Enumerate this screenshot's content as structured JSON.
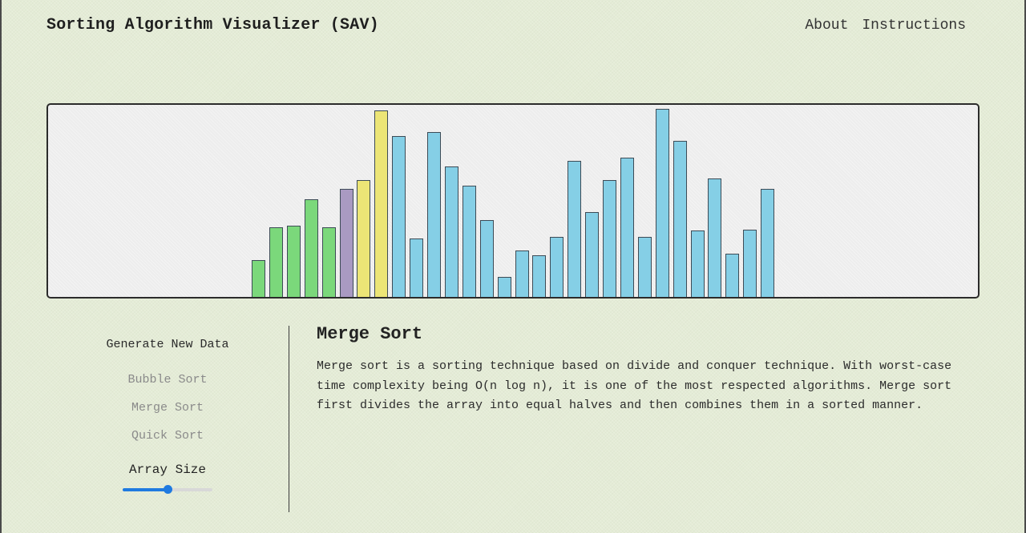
{
  "header": {
    "title": "Sorting Algorithm Visualizer (SAV)",
    "nav": [
      {
        "label": "About"
      },
      {
        "label": "Instructions"
      }
    ]
  },
  "visualizer": {
    "max_value": 214,
    "bars": [
      {
        "value": 42,
        "state": "sorted"
      },
      {
        "value": 79,
        "state": "sorted"
      },
      {
        "value": 81,
        "state": "sorted"
      },
      {
        "value": 111,
        "state": "sorted"
      },
      {
        "value": 79,
        "state": "sorted"
      },
      {
        "value": 122,
        "state": "pivot"
      },
      {
        "value": 132,
        "state": "compare"
      },
      {
        "value": 211,
        "state": "compare"
      },
      {
        "value": 182,
        "state": "unsorted"
      },
      {
        "value": 66,
        "state": "unsorted"
      },
      {
        "value": 187,
        "state": "unsorted"
      },
      {
        "value": 148,
        "state": "unsorted"
      },
      {
        "value": 126,
        "state": "unsorted"
      },
      {
        "value": 87,
        "state": "unsorted"
      },
      {
        "value": 23,
        "state": "unsorted"
      },
      {
        "value": 53,
        "state": "unsorted"
      },
      {
        "value": 47,
        "state": "unsorted"
      },
      {
        "value": 68,
        "state": "unsorted"
      },
      {
        "value": 154,
        "state": "unsorted"
      },
      {
        "value": 96,
        "state": "unsorted"
      },
      {
        "value": 132,
        "state": "unsorted"
      },
      {
        "value": 158,
        "state": "unsorted"
      },
      {
        "value": 68,
        "state": "unsorted"
      },
      {
        "value": 213,
        "state": "unsorted"
      },
      {
        "value": 177,
        "state": "unsorted"
      },
      {
        "value": 75,
        "state": "unsorted"
      },
      {
        "value": 134,
        "state": "unsorted"
      },
      {
        "value": 49,
        "state": "unsorted"
      },
      {
        "value": 76,
        "state": "unsorted"
      },
      {
        "value": 122,
        "state": "unsorted"
      }
    ],
    "colors": {
      "sorted": "#7bd87b",
      "pivot": "#a99ac2",
      "compare": "#ece576",
      "unsorted": "#85cfe6"
    }
  },
  "controls": {
    "generate_label": "Generate New Data",
    "sort_options": [
      {
        "label": "Bubble Sort"
      },
      {
        "label": "Merge Sort"
      },
      {
        "label": "Quick Sort"
      }
    ],
    "array_size_label": "Array Size",
    "array_size_fraction": 0.5,
    "accent_color": "#1f7ae0"
  },
  "info": {
    "title": "Merge Sort",
    "description": "Merge sort is a sorting technique based on divide and conquer technique. With worst-case time complexity being O(n log n), it is one of the most respected algorithms. Merge sort first divides the array into equal halves and then combines them in a sorted manner."
  }
}
